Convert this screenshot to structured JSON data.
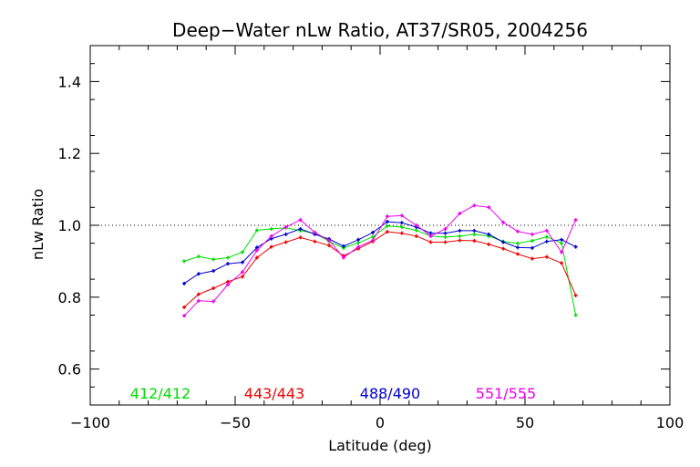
{
  "chart_data": {
    "type": "line",
    "title": "Deep−Water nLw Ratio, AT37/SR05, 2004256",
    "xlabel": "Latitude (deg)",
    "ylabel": "nLw Ratio",
    "xlim": [
      -100,
      100
    ],
    "ylim": [
      0.5,
      1.5
    ],
    "xticks": [
      -100,
      -50,
      0,
      50,
      100
    ],
    "xtick_labels": [
      "−100",
      "−50",
      "0",
      "50",
      "100"
    ],
    "yticks": [
      0.6,
      0.8,
      1.0,
      1.2,
      1.4
    ],
    "ytick_labels": [
      "0.6",
      "0.8",
      "1.0",
      "1.2",
      "1.4"
    ],
    "reference_line": 1.0,
    "grid": false,
    "legend_placement": "bottom-inside",
    "series": [
      {
        "name": "412/412",
        "color": "#00dd00",
        "x": [
          -67.6,
          -62.6,
          -57.5,
          -52.5,
          -47.5,
          -42.5,
          -37.5,
          -32.5,
          -27.5,
          -22.5,
          -17.6,
          -12.6,
          -7.5,
          -2.5,
          2.5,
          7.5,
          12.5,
          17.5,
          22.5,
          27.5,
          32.5,
          37.5,
          42.5,
          47.5,
          52.5,
          57.5,
          62.6,
          67.5
        ],
        "y": [
          0.9,
          0.913,
          0.905,
          0.91,
          0.925,
          0.986,
          0.99,
          0.993,
          0.985,
          0.978,
          0.955,
          0.937,
          0.951,
          0.968,
          0.998,
          0.995,
          0.986,
          0.97,
          0.967,
          0.97,
          0.975,
          0.97,
          0.955,
          0.95,
          0.957,
          0.968,
          0.95,
          0.75
        ]
      },
      {
        "name": "443/443",
        "color": "#ee0000",
        "x": [
          -67.6,
          -62.6,
          -57.5,
          -52.5,
          -47.5,
          -42.5,
          -37.5,
          -32.5,
          -27.5,
          -22.5,
          -17.6,
          -12.6,
          -7.5,
          -2.5,
          2.5,
          7.5,
          12.5,
          17.5,
          22.5,
          27.5,
          32.5,
          37.5,
          42.5,
          47.5,
          52.5,
          57.5,
          62.6,
          67.5
        ],
        "y": [
          0.772,
          0.808,
          0.825,
          0.843,
          0.857,
          0.91,
          0.94,
          0.953,
          0.966,
          0.955,
          0.944,
          0.915,
          0.935,
          0.955,
          0.982,
          0.978,
          0.97,
          0.953,
          0.953,
          0.958,
          0.957,
          0.947,
          0.935,
          0.92,
          0.907,
          0.912,
          0.895,
          0.805
        ]
      },
      {
        "name": "488/490",
        "color": "#0000cc",
        "x": [
          -67.6,
          -62.6,
          -57.5,
          -52.5,
          -47.5,
          -42.5,
          -37.5,
          -32.5,
          -27.5,
          -22.5,
          -17.6,
          -12.6,
          -7.5,
          -2.5,
          2.5,
          7.5,
          12.5,
          17.5,
          22.5,
          27.5,
          32.5,
          37.5,
          42.5,
          47.5,
          52.5,
          57.5,
          62.6,
          67.5
        ],
        "y": [
          0.838,
          0.865,
          0.873,
          0.893,
          0.897,
          0.938,
          0.963,
          0.975,
          0.99,
          0.975,
          0.962,
          0.942,
          0.96,
          0.98,
          1.01,
          1.007,
          0.995,
          0.978,
          0.978,
          0.985,
          0.985,
          0.975,
          0.953,
          0.938,
          0.937,
          0.955,
          0.96,
          0.94
        ]
      },
      {
        "name": "551/555",
        "color": "#ee00ee",
        "x": [
          -67.6,
          -62.6,
          -57.5,
          -52.5,
          -47.5,
          -42.5,
          -37.5,
          -32.5,
          -27.5,
          -22.5,
          -17.6,
          -12.6,
          -7.5,
          -2.5,
          2.5,
          7.5,
          12.5,
          17.5,
          22.5,
          27.5,
          32.5,
          37.5,
          42.5,
          47.5,
          52.5,
          57.5,
          62.6,
          67.5
        ],
        "y": [
          0.748,
          0.79,
          0.788,
          0.835,
          0.87,
          0.93,
          0.97,
          0.995,
          1.015,
          0.98,
          0.958,
          0.91,
          0.94,
          0.958,
          1.025,
          1.027,
          1.0,
          0.97,
          0.99,
          1.033,
          1.055,
          1.05,
          1.008,
          0.983,
          0.975,
          0.985,
          0.925,
          1.015
        ]
      }
    ]
  }
}
